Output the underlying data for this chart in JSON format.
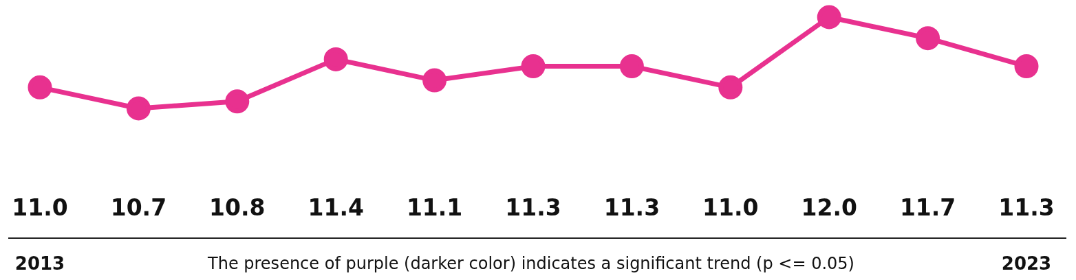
{
  "chart_data": {
    "type": "line",
    "categories": [
      "2013",
      null,
      null,
      null,
      null,
      null,
      null,
      null,
      null,
      null,
      "2023"
    ],
    "series": [
      {
        "color": "#e8318f",
        "values": [
          11.0,
          10.7,
          10.8,
          11.4,
          11.1,
          11.3,
          11.3,
          11.0,
          12.0,
          11.7,
          11.3
        ],
        "value_labels": [
          "11.0",
          "10.7",
          "10.8",
          "11.4",
          "11.1",
          "11.3",
          "11.3",
          "11.0",
          "12.0",
          "11.7",
          "11.3"
        ]
      }
    ],
    "marker": "circle",
    "line_style": "solid",
    "legend": false,
    "annotations": [
      "The presence of purple (darker color) indicates a significant trend (p <= 0.05)"
    ]
  }
}
